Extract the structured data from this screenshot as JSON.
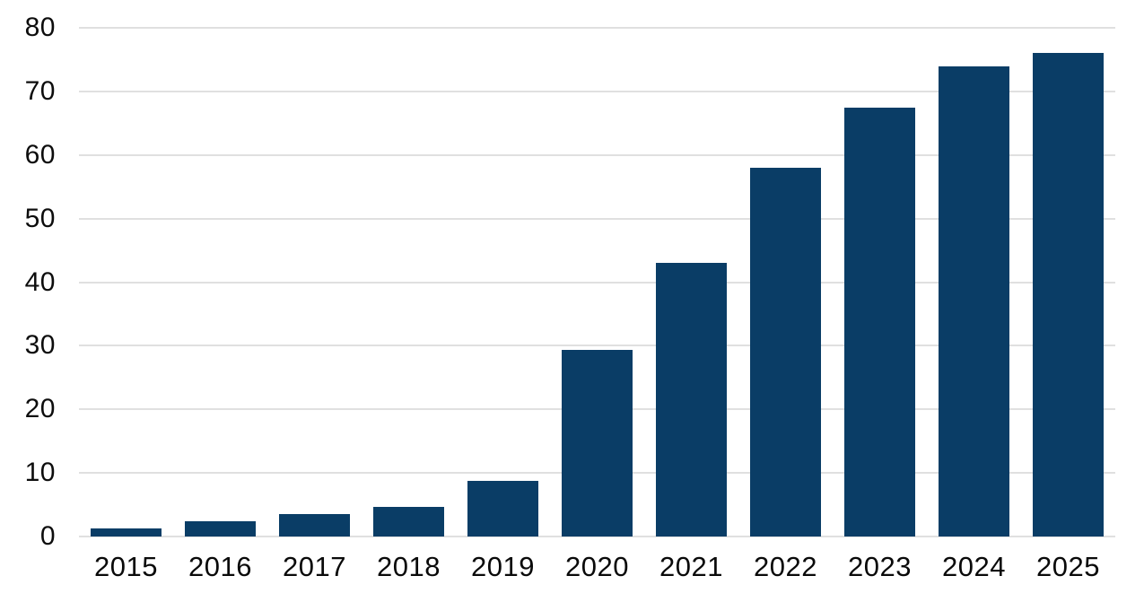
{
  "chart_data": {
    "type": "bar",
    "title": "",
    "xlabel": "",
    "ylabel": "",
    "categories": [
      "2015",
      "2016",
      "2017",
      "2018",
      "2019",
      "2020",
      "2021",
      "2022",
      "2023",
      "2024",
      "2025"
    ],
    "values": [
      1.3,
      2.4,
      3.5,
      4.7,
      8.7,
      29.3,
      43,
      58,
      67.5,
      74,
      76
    ],
    "ylim": [
      0,
      80
    ],
    "yticks": [
      0,
      10,
      20,
      30,
      40,
      50,
      60,
      70,
      80
    ],
    "grid": true,
    "legend": false,
    "bar_color": "#0a3d66",
    "gridline_color": "#e0e0e0",
    "text_color": "#0d0d0d",
    "background_color": "#ffffff"
  }
}
